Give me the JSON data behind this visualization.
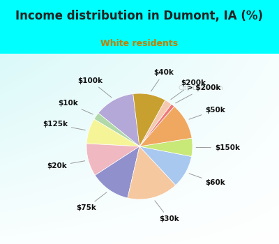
{
  "title": "Income distribution in Dumont, IA (%)",
  "subtitle": "White residents",
  "title_color": "#222222",
  "subtitle_color": "#c08000",
  "bg_cyan": "#00FFFF",
  "watermark": "City-Data.com",
  "slices": [
    {
      "label": "$100k",
      "value": 11,
      "color": "#b3a8d8"
    },
    {
      "label": "$10k",
      "value": 2,
      "color": "#b0d8a8"
    },
    {
      "label": "$125k",
      "value": 7,
      "color": "#f5f598"
    },
    {
      "label": "$20k",
      "value": 9,
      "color": "#f0b8c0"
    },
    {
      "label": "$75k",
      "value": 11,
      "color": "#9090cc"
    },
    {
      "label": "$30k",
      "value": 14,
      "color": "#f5c8a0"
    },
    {
      "label": "$60k",
      "value": 9,
      "color": "#a8c8f0"
    },
    {
      "label": "$150k",
      "value": 5,
      "color": "#c8e878"
    },
    {
      "label": "$50k",
      "value": 10,
      "color": "#f0a860"
    },
    {
      "label": "> $200k",
      "value": 1,
      "color": "#f07878"
    },
    {
      "label": "$200k",
      "value": 2,
      "color": "#f5c8b0"
    },
    {
      "label": "$40k",
      "value": 9,
      "color": "#c8a030"
    }
  ],
  "startangle": 97,
  "title_fontsize": 12,
  "subtitle_fontsize": 9,
  "label_fontsize": 7.5
}
